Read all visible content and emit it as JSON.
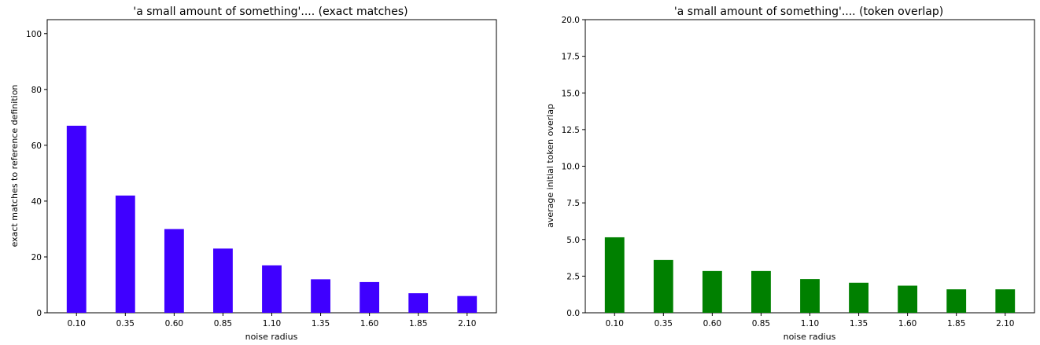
{
  "chart_data": [
    {
      "type": "bar",
      "title": "'a small amount of something'.... (exact matches)",
      "xlabel": "noise radius",
      "ylabel": "exact matches to reference definition",
      "categories": [
        "0.10",
        "0.35",
        "0.60",
        "0.85",
        "1.10",
        "1.35",
        "1.60",
        "1.85",
        "2.10"
      ],
      "values": [
        67,
        42,
        30,
        23,
        17,
        12,
        11,
        7,
        6
      ],
      "ylim": [
        0,
        105
      ],
      "yticks": [
        "0",
        "20",
        "40",
        "60",
        "80",
        "100"
      ],
      "grid": false,
      "color": "#3f00ff"
    },
    {
      "type": "bar",
      "title": "'a small amount of something'.... (token overlap)",
      "xlabel": "noise radius",
      "ylabel": "average initial token overlap",
      "categories": [
        "0.10",
        "0.35",
        "0.60",
        "0.85",
        "1.10",
        "1.35",
        "1.60",
        "1.85",
        "2.10"
      ],
      "values": [
        5.15,
        3.6,
        2.85,
        2.85,
        2.3,
        2.05,
        1.85,
        1.6,
        1.6
      ],
      "ylim": [
        0,
        20
      ],
      "yticks": [
        "0.0",
        "2.5",
        "5.0",
        "7.5",
        "10.0",
        "12.5",
        "15.0",
        "17.5",
        "20.0"
      ],
      "grid": false,
      "color": "#008000"
    }
  ]
}
